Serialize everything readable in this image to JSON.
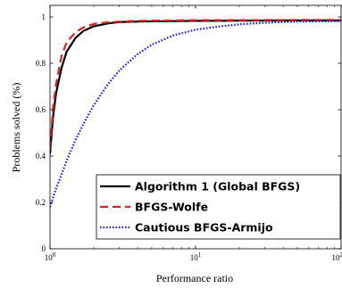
{
  "chart_data": {
    "type": "line",
    "xlabel": "Performance ratio",
    "ylabel": "Problems solved (%)",
    "xscale": "log",
    "xlim": [
      1,
      100
    ],
    "ylim": [
      0,
      1.05
    ],
    "xticks": [
      {
        "value": 1,
        "base": "10",
        "exp": "0"
      },
      {
        "value": 10,
        "base": "10",
        "exp": "1"
      },
      {
        "value": 100,
        "base": "10",
        "exp": "2"
      }
    ],
    "yticks": [
      {
        "value": 0,
        "label": "0"
      },
      {
        "value": 0.2,
        "label": "0.2"
      },
      {
        "value": 0.4,
        "label": "0.4"
      },
      {
        "value": 0.6,
        "label": "0.6"
      },
      {
        "value": 0.8,
        "label": "0.8"
      },
      {
        "value": 1,
        "label": "1"
      }
    ],
    "grid": false,
    "legend_position": "bottom-right",
    "series": [
      {
        "name": "Algorithm 1 (Global BFGS)",
        "color": "#000000",
        "style": "solid",
        "x": [
          1.0,
          1.05,
          1.1,
          1.2,
          1.3,
          1.5,
          1.7,
          2.0,
          2.5,
          3.0,
          4.0,
          5.0,
          7.0,
          10,
          20,
          50,
          100
        ],
        "y": [
          0.41,
          0.57,
          0.67,
          0.78,
          0.85,
          0.91,
          0.94,
          0.96,
          0.972,
          0.978,
          0.98,
          0.981,
          0.982,
          0.983,
          0.984,
          0.985,
          0.985
        ]
      },
      {
        "name": "BFGS-Wolfe",
        "color": "#e02020",
        "style": "dashed",
        "x": [
          1.0,
          1.05,
          1.1,
          1.2,
          1.3,
          1.5,
          1.7,
          2.0,
          2.5,
          3.0,
          4.0,
          5.0,
          7.0,
          10,
          20,
          50,
          100
        ],
        "y": [
          0.43,
          0.61,
          0.71,
          0.83,
          0.89,
          0.935,
          0.955,
          0.97,
          0.977,
          0.98,
          0.983,
          0.984,
          0.985,
          0.986,
          0.986,
          0.987,
          0.987
        ]
      },
      {
        "name": "Cautious BFGS-Armijo",
        "color": "#1a1aff",
        "style": "dotted",
        "x": [
          1.0,
          1.1,
          1.2,
          1.3,
          1.5,
          1.7,
          2.0,
          2.5,
          3.0,
          4.0,
          5.0,
          7.0,
          10,
          15,
          20,
          30,
          50,
          100
        ],
        "y": [
          0.18,
          0.26,
          0.32,
          0.38,
          0.47,
          0.54,
          0.62,
          0.71,
          0.77,
          0.84,
          0.88,
          0.92,
          0.945,
          0.96,
          0.968,
          0.975,
          0.98,
          0.982
        ]
      }
    ]
  }
}
